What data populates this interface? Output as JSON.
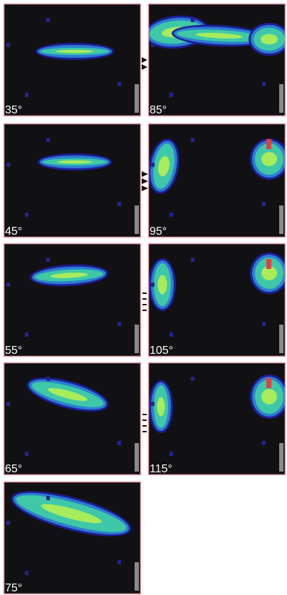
{
  "panels": [
    {
      "label": "35°"
    },
    {
      "label": "85°"
    },
    {
      "label": "45°"
    },
    {
      "label": "95°"
    },
    {
      "label": "55°"
    },
    {
      "label": "105°"
    },
    {
      "label": "65°"
    },
    {
      "label": "115°"
    },
    {
      "label": "75°"
    }
  ]
}
